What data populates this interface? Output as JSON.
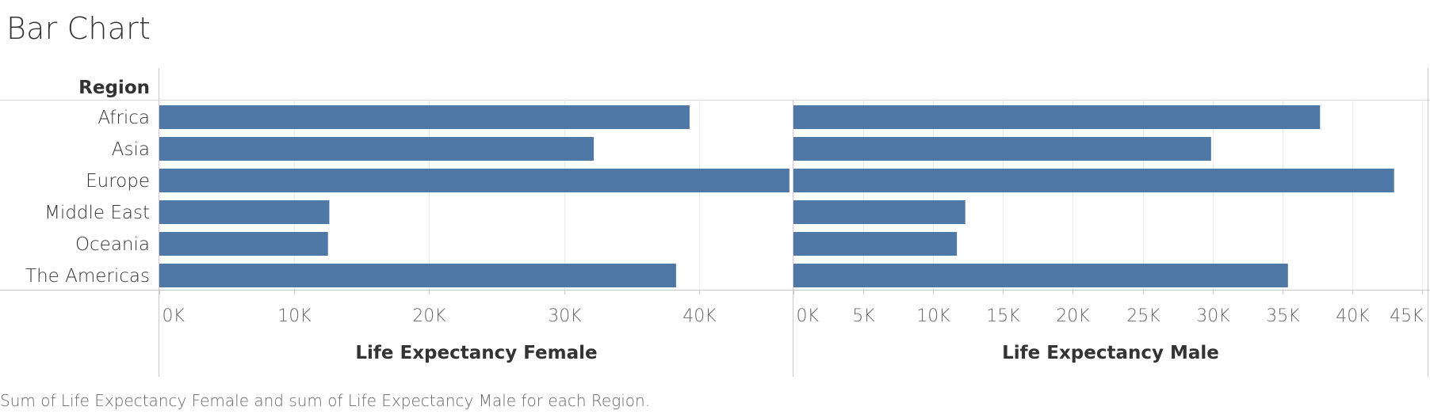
{
  "title": "Bar Chart",
  "caption": "Sum of Life Expectancy Female and sum of Life Expectancy Male for each Region.",
  "colors": {
    "bar": "#4e79a7",
    "grid": "#ececec",
    "axis": "#c8c8c8",
    "text": "#333333",
    "tick_text": "#666666"
  },
  "chart_data": {
    "type": "bar",
    "orientation": "horizontal",
    "row_header": "Region",
    "categories": [
      "Africa",
      "Asia",
      "Europe",
      "Middle East",
      "Oceania",
      "The Americas"
    ],
    "series": [
      {
        "name": "Life Expectancy Female",
        "values": [
          39300,
          32200,
          46700,
          12600,
          12500,
          38300
        ],
        "xlim": [
          0,
          47000
        ],
        "ticks": [
          0,
          10000,
          20000,
          30000,
          40000
        ],
        "tick_labels": [
          "0K",
          "10K",
          "20K",
          "30K",
          "40K"
        ],
        "xlabel": "Life Expectancy Female"
      },
      {
        "name": "Life Expectancy Male",
        "values": [
          37700,
          29900,
          43000,
          12300,
          11700,
          35400
        ],
        "xlim": [
          0,
          45400
        ],
        "ticks": [
          0,
          5000,
          10000,
          15000,
          20000,
          25000,
          30000,
          35000,
          40000,
          45000
        ],
        "tick_labels": [
          "0K",
          "5K",
          "10K",
          "15K",
          "20K",
          "25K",
          "30K",
          "35K",
          "40K",
          "45K"
        ],
        "xlabel": "Life Expectancy Male"
      }
    ],
    "grid": true,
    "legend": "none"
  }
}
